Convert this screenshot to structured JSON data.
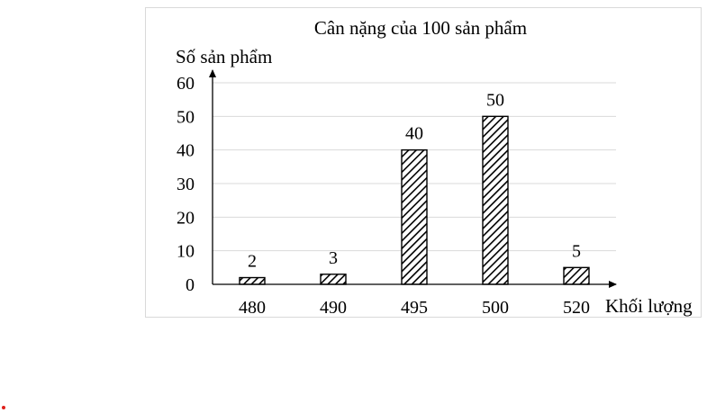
{
  "chart_data": {
    "type": "bar",
    "title": "Cân nặng của 100 sản phẩm",
    "xlabel": "Khối lượng",
    "ylabel": "Số sản phẩm",
    "categories": [
      "480",
      "490",
      "495",
      "500",
      "520"
    ],
    "values": [
      2,
      3,
      40,
      50,
      5
    ],
    "data_labels": [
      "2",
      "3",
      "40",
      "50",
      "5"
    ],
    "ylim": [
      0,
      60
    ],
    "yticks": [
      0,
      10,
      20,
      30,
      40,
      50,
      60
    ],
    "ytick_labels": [
      "0",
      "10",
      "20",
      "30",
      "40",
      "50",
      "60"
    ],
    "grid": true,
    "bar_pattern": "diagonal-hatch",
    "colors": {
      "bar_stroke": "#000000",
      "hatch": "#000000",
      "grid": "#d9d9d9",
      "frame": "#d9d9d9"
    }
  }
}
